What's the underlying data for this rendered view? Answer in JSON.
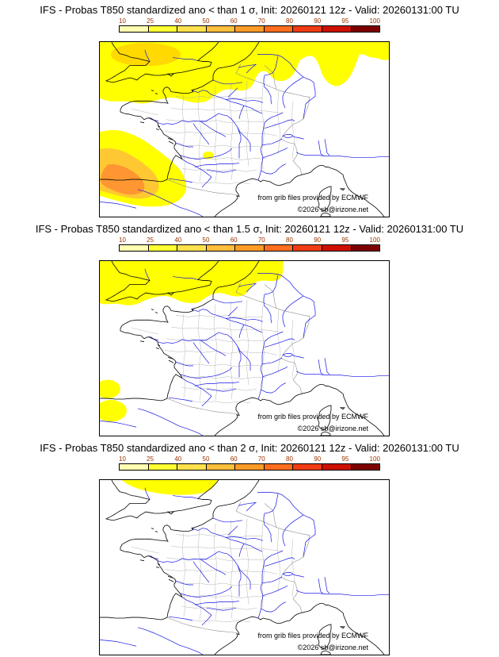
{
  "panels": [
    {
      "title": "IFS - Probas T850  standardized ano < than 1 σ, Init: 20260121 12z - Valid: 20260131:00 TU"
    },
    {
      "title": "IFS - Probas T850  standardized ano < than 1.5 σ, Init: 20260121 12z - Valid: 20260131:00 TU"
    },
    {
      "title": "IFS - Probas T850  standardized ano < than 2 σ, Init: 20260121 12z - Valid: 20260131:00 TU"
    }
  ],
  "colorbar": {
    "ticks": [
      "10",
      "25",
      "40",
      "50",
      "60",
      "70",
      "80",
      "90",
      "95",
      "100"
    ],
    "segment_colors": [
      "#ffffb2",
      "#ffff32",
      "#ffe14d",
      "#ffbe3c",
      "#ff9b28",
      "#ff6e1e",
      "#f03c14",
      "#cd1000",
      "#7d0000"
    ],
    "tick_label_color": "#993300"
  },
  "credits": {
    "line1": "from grib files provided by ECMWF",
    "line2": "©2026 sb@irizone.net"
  },
  "map_colors": {
    "probability_low": "#ffff00",
    "probability_gold": "#ffd900",
    "probability_mid": "#ffc832",
    "probability_high": "#ff9632",
    "coastline": "#000000",
    "rivers": "#1414e6",
    "departments": "#b4b4b4",
    "borders": "#8c8c8c"
  }
}
